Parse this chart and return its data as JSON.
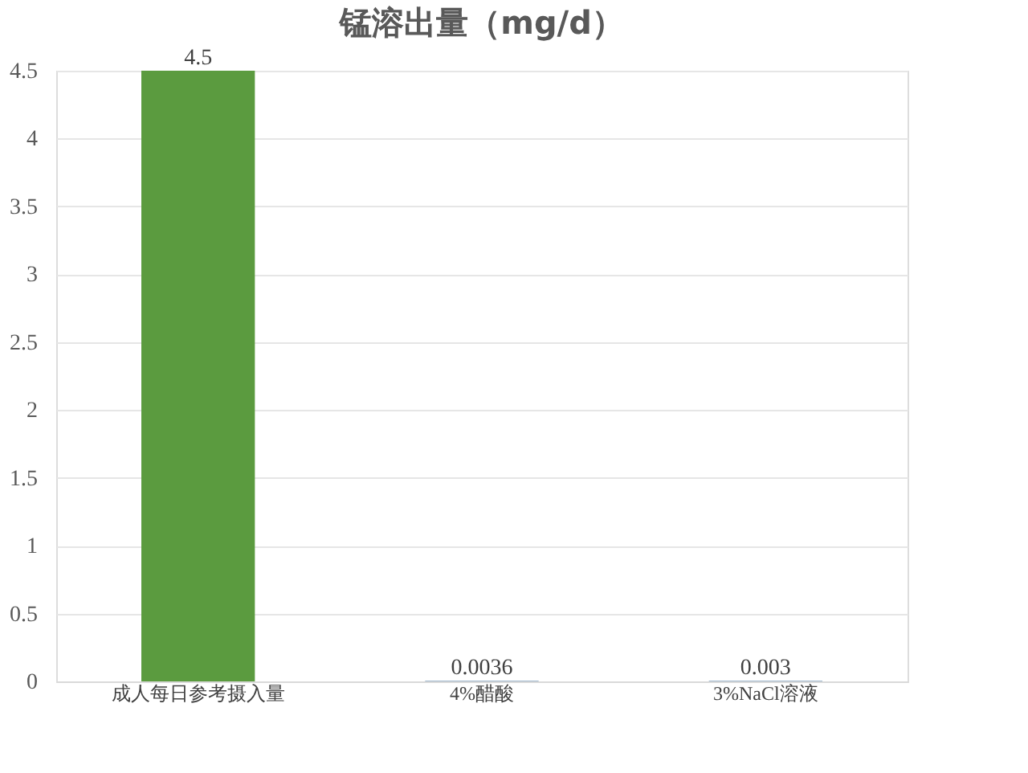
{
  "chart_data": {
    "type": "bar",
    "title": "锰溶出量（mg/d）",
    "categories": [
      "成人每日参考摄入量",
      "4%醋酸",
      "3%NaCl溶液"
    ],
    "values": [
      4.5,
      0.0036,
      0.003
    ],
    "colors": [
      "#5b9b3f",
      "#41719c",
      "#41719c"
    ],
    "ylim": [
      0,
      4.5
    ],
    "yticks": [
      0,
      0.5,
      1,
      1.5,
      2,
      2.5,
      3,
      3.5,
      4,
      4.5
    ],
    "grid": "y",
    "data_labels": true
  }
}
